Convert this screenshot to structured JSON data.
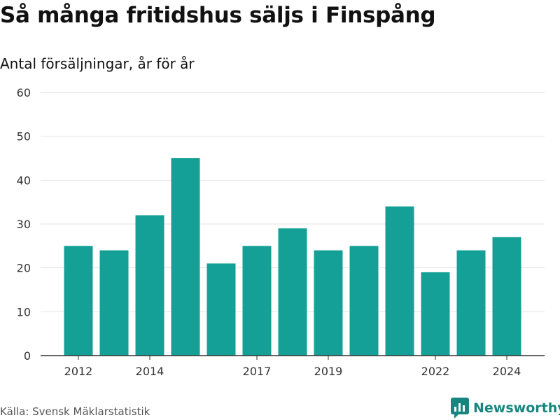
{
  "header": {
    "title": "Så många fritidshus säljs i Finspång",
    "subtitle": "Antal försäljningar, år för år"
  },
  "footer": {
    "source": "Källa: Svensk Mäklarstatistik",
    "brand_name": "Newsworthy",
    "brand_icon": "newsworthy-logo-icon"
  },
  "colors": {
    "bar": "#14a096",
    "grid": "#e2e2e2",
    "axis": "#333333",
    "brand": "#16867f"
  },
  "chart_data": {
    "type": "bar",
    "title": "Så många fritidshus säljs i Finspång",
    "subtitle": "Antal försäljningar, år för år",
    "categories": [
      "2012",
      "2013",
      "2014",
      "2015",
      "2016",
      "2017",
      "2018",
      "2019",
      "2020",
      "2021",
      "2022",
      "2023",
      "2024"
    ],
    "values": [
      25,
      24,
      32,
      45,
      21,
      25,
      29,
      24,
      25,
      34,
      19,
      24,
      27
    ],
    "x_tick_labels": [
      "2012",
      "2014",
      "2017",
      "2019",
      "2022",
      "2024"
    ],
    "y_ticks": [
      0,
      10,
      20,
      30,
      40,
      50,
      60
    ],
    "ylim": [
      0,
      60
    ],
    "grid": true,
    "legend": "none"
  }
}
